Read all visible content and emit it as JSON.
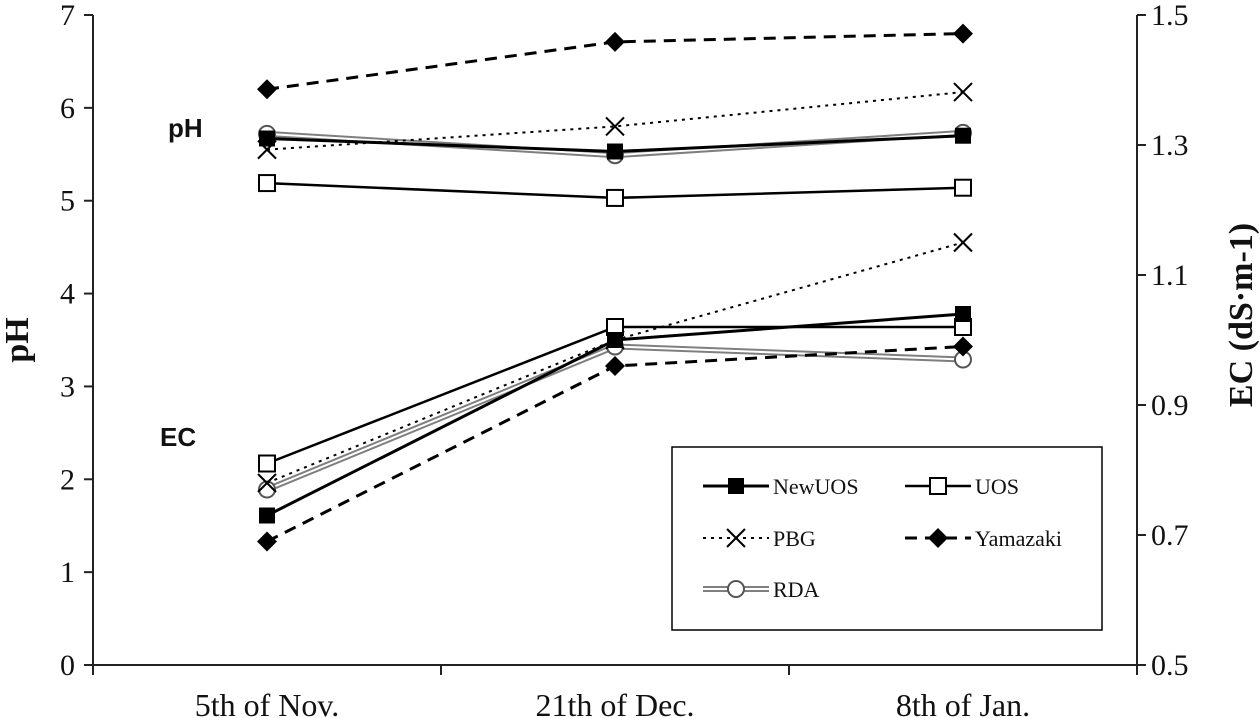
{
  "chart_data": {
    "type": "line",
    "title": "",
    "categories": [
      "5th of Nov.",
      "21th of Dec.",
      "8th of Jan."
    ],
    "xlabel": "",
    "ylabel_left": "pH",
    "ylabel_right": "EC (dS·m-1)",
    "ylim_left": [
      0,
      7
    ],
    "ylim_right": [
      0.5,
      1.5
    ],
    "yticks_left": [
      "0",
      "1",
      "2",
      "3",
      "4",
      "5",
      "6",
      "7"
    ],
    "yticks_right": [
      "0.5",
      "0.7",
      "0.9",
      "1.1",
      "1.3",
      "1.5"
    ],
    "annotations": [
      {
        "text": "pH",
        "near": "upper-left series group"
      },
      {
        "text": "EC",
        "near": "lower-left series group"
      }
    ],
    "legend_position": "bottom-right",
    "series_pH": [
      {
        "name": "NewUOS",
        "values": [
          5.67,
          5.53,
          5.7
        ]
      },
      {
        "name": "UOS",
        "values": [
          5.19,
          5.03,
          5.14
        ]
      },
      {
        "name": "PBG",
        "values": [
          5.55,
          5.8,
          6.17
        ]
      },
      {
        "name": "Yamazaki",
        "values": [
          6.2,
          6.71,
          6.8
        ]
      },
      {
        "name": "RDA",
        "values": [
          5.72,
          5.49,
          5.73
        ]
      }
    ],
    "series_EC": [
      {
        "name": "NewUOS",
        "values": [
          0.73,
          1.0,
          1.04
        ]
      },
      {
        "name": "UOS",
        "values": [
          0.81,
          1.02,
          1.02
        ]
      },
      {
        "name": "PBG",
        "values": [
          0.78,
          1.0,
          1.15
        ]
      },
      {
        "name": "Yamazaki",
        "values": [
          0.69,
          0.96,
          0.99
        ]
      },
      {
        "name": "RDA",
        "values": [
          0.77,
          0.99,
          0.97
        ]
      }
    ]
  },
  "legend": {
    "items": [
      {
        "name": "NewUOS",
        "marker": "filled-square",
        "line": "solid"
      },
      {
        "name": "UOS",
        "marker": "open-square",
        "line": "solid"
      },
      {
        "name": "PBG",
        "marker": "x",
        "line": "dotted"
      },
      {
        "name": "Yamazaki",
        "marker": "filled-diamond",
        "line": "dashed"
      },
      {
        "name": "RDA",
        "marker": "open-circle",
        "line": "double-gray"
      }
    ]
  }
}
